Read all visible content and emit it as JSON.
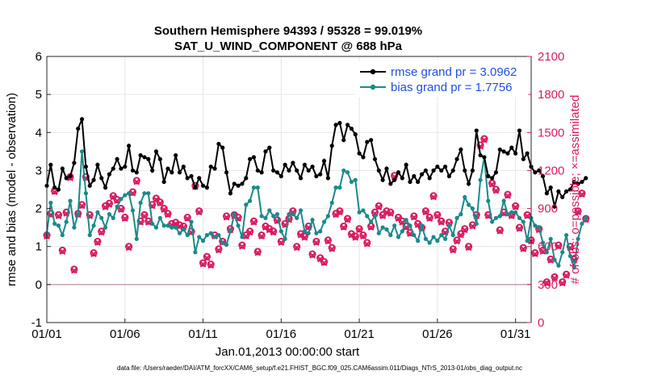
{
  "chart_data": {
    "type": "line",
    "title_lines": [
      "Southern Hemisphere 94393 / 95328 = 99.019%",
      "SAT_U_WIND_COMPONENT @ 688 hPa"
    ],
    "xlabel": "Jan.01,2013 00:00:00 start",
    "ylabel_left": "rmse and bias (model - observation)",
    "ylabel_right": "# of obs: o=possible; ×=assimilated",
    "xlim": [
      1,
      32
    ],
    "ylim_left": [
      -1,
      6
    ],
    "ylim_right": [
      0,
      2100
    ],
    "x_ticks": [
      1,
      6,
      11,
      16,
      21,
      26,
      31
    ],
    "x_tick_labels": [
      "01/01",
      "01/06",
      "01/11",
      "01/16",
      "01/21",
      "01/26",
      "01/31"
    ],
    "y_ticks_left": [
      "-1",
      "0",
      "1",
      "2",
      "3",
      "4",
      "5",
      "6"
    ],
    "y_ticks_right": [
      "0",
      "300",
      "600",
      "900",
      "1200",
      "1500",
      "1800",
      "2100"
    ],
    "legend": [
      "rmse grand pr = 3.0962",
      "bias grand pr = 1.7756"
    ],
    "footnote": "data file: /Users/raeder/DAI/ATM_forcXX/CAM6_setup/f.e21.FHIST_BGC.f09_025.CAM6assim.011/Diags_NTrS_2013-01/obs_diag_output.nc",
    "x_start": 1,
    "x_step": 0.25,
    "series": [
      {
        "name": "rmse",
        "color": "#000000",
        "values": [
          2.6,
          3.15,
          2.55,
          2.5,
          3.05,
          2.8,
          2.85,
          3.2,
          4.1,
          4.35,
          3.1,
          2.6,
          2.75,
          3.15,
          2.8,
          2.55,
          2.9,
          3.05,
          3.3,
          3.05,
          3.1,
          3.65,
          3.0,
          2.95,
          3.4,
          3.35,
          3.3,
          3.0,
          3.5,
          3.3,
          2.7,
          3.05,
          2.95,
          3.4,
          2.95,
          3.1,
          2.8,
          2.85,
          2.55,
          2.8,
          2.6,
          2.55,
          3.1,
          3.05,
          3.7,
          3.6,
          2.95,
          2.4,
          2.65,
          2.6,
          2.65,
          2.8,
          3.3,
          3.35,
          3.0,
          2.95,
          3.5,
          3.6,
          3.0,
          2.95,
          2.85,
          3.15,
          3.0,
          3.2,
          3.0,
          2.8,
          3.15,
          3.0,
          3.1,
          2.85,
          2.9,
          3.25,
          2.8,
          3.65,
          4.2,
          4.25,
          3.8,
          4.2,
          4.1,
          3.95,
          3.45,
          3.35,
          3.75,
          3.8,
          3.3,
          3.0,
          2.75,
          3.05,
          2.65,
          2.75,
          2.95,
          2.8,
          3.15,
          2.7,
          2.85,
          2.7,
          2.9,
          3.0,
          2.8,
          3.0,
          3.1,
          3.0,
          3.1,
          2.85,
          3.0,
          3.3,
          3.55,
          3.0,
          2.65,
          3.0,
          4.05,
          3.4,
          3.35,
          2.85,
          2.8,
          2.95,
          3.55,
          3.5,
          3.45,
          3.6,
          3.45,
          4.05,
          3.3,
          3.45,
          3.1,
          2.95,
          3.0,
          2.85,
          2.4,
          2.55,
          2.05,
          2.45,
          2.3,
          2.45,
          2.5,
          2.7,
          2.65,
          2.7,
          2.8
        ]
      },
      {
        "name": "bias",
        "color": "#1a8a8a",
        "values": [
          1.35,
          2.15,
          1.6,
          1.55,
          1.3,
          1.65,
          2.2,
          1.5,
          1.85,
          3.5,
          2.4,
          1.3,
          1.55,
          1.9,
          1.75,
          1.5,
          1.85,
          1.75,
          2.05,
          2.25,
          2.35,
          2.4,
          1.95,
          1.2,
          2.15,
          2.4,
          2.4,
          1.6,
          1.5,
          1.75,
          1.55,
          1.55,
          1.5,
          1.5,
          1.35,
          1.45,
          1.3,
          1.65,
          0.85,
          1.25,
          1.15,
          1.3,
          1.35,
          1.25,
          1.3,
          1.1,
          1.05,
          1.4,
          1.85,
          1.55,
          1.25,
          2.1,
          2.2,
          2.55,
          2.55,
          1.8,
          1.75,
          1.95,
          1.8,
          1.85,
          1.4,
          1.2,
          1.85,
          1.85,
          1.75,
          1.95,
          1.4,
          1.35,
          1.7,
          1.35,
          1.4,
          1.65,
          1.8,
          2.15,
          2.55,
          2.55,
          3.0,
          2.95,
          2.7,
          2.75,
          1.9,
          1.95,
          1.8,
          1.65,
          1.8,
          1.35,
          1.5,
          1.45,
          1.3,
          1.55,
          1.25,
          1.4,
          1.7,
          1.55,
          1.3,
          1.15,
          1.55,
          1.2,
          1.1,
          1.25,
          1.15,
          1.3,
          1.2,
          1.55,
          1.3,
          1.75,
          1.85,
          2.3,
          2.1,
          2.0,
          1.6,
          2.75,
          3.35,
          2.2,
          1.65,
          1.75,
          1.8,
          2.2,
          1.85,
          1.9,
          1.9,
          1.75,
          1.65,
          1.15,
          1.75,
          1.55,
          1.5,
          1.1,
          0.85,
          1.2,
          0.65,
          0.5,
          0.85,
          1.3,
          0.75,
          0.45,
          1.2,
          1.6,
          1.75
        ]
      },
      {
        "name": "obs possible",
        "color": "#d81b60",
        "axis": "right",
        "values": [
          690,
          860,
          1040,
          850,
          570,
          870,
          1150,
          420,
          860,
          930,
          1150,
          850,
          550,
          640,
          720,
          920,
          940,
          1000,
          970,
          900,
          830,
          600,
          1030,
          1120,
          800,
          850,
          800,
          930,
          980,
          950,
          900,
          860,
          780,
          790,
          770,
          760,
          830,
          720,
          1080,
          880,
          470,
          520,
          460,
          690,
          580,
          640,
          840,
          740,
          850,
          830,
          610,
          690,
          720,
          800,
          560,
          690,
          760,
          740,
          720,
          810,
          640,
          780,
          820,
          880,
          600,
          700,
          680,
          760,
          540,
          640,
          510,
          480,
          650,
          590,
          860,
          880,
          760,
          820,
          700,
          680,
          740,
          690,
          630,
          760,
          870,
          920,
          850,
          880,
          870,
          1160,
          830,
          800,
          760,
          710,
          840,
          780,
          750,
          880,
          830,
          1000,
          850,
          800,
          720,
          790,
          580,
          650,
          700,
          740,
          600,
          770,
          850,
          1400,
          1450,
          850,
          1100,
          1050,
          730,
          870,
          1010,
          850,
          920,
          750,
          590,
          850,
          650,
          550,
          740,
          570,
          320,
          500,
          360,
          610,
          320,
          380,
          600,
          500,
          880,
          1020,
          820
        ]
      },
      {
        "name": "obs assimilated",
        "color": "#d81b60",
        "axis": "right",
        "values": [
          680,
          850,
          1030,
          840,
          560,
          860,
          1140,
          410,
          850,
          920,
          1140,
          840,
          540,
          630,
          710,
          910,
          930,
          990,
          960,
          890,
          820,
          590,
          1020,
          1110,
          790,
          840,
          790,
          920,
          970,
          940,
          890,
          850,
          770,
          780,
          760,
          750,
          820,
          710,
          1070,
          870,
          460,
          510,
          450,
          680,
          570,
          630,
          830,
          730,
          840,
          820,
          600,
          680,
          710,
          790,
          550,
          680,
          750,
          730,
          710,
          800,
          630,
          770,
          810,
          870,
          590,
          690,
          670,
          750,
          530,
          630,
          500,
          470,
          640,
          580,
          850,
          870,
          750,
          810,
          690,
          670,
          730,
          680,
          620,
          750,
          860,
          910,
          840,
          870,
          860,
          1150,
          820,
          790,
          750,
          700,
          830,
          770,
          740,
          870,
          820,
          990,
          840,
          790,
          710,
          780,
          570,
          640,
          690,
          730,
          590,
          760,
          840,
          1390,
          1440,
          840,
          1090,
          1040,
          720,
          860,
          1000,
          840,
          910,
          740,
          580,
          840,
          640,
          540,
          730,
          560,
          310,
          490,
          350,
          600,
          310,
          370,
          590,
          490,
          870,
          1010,
          810
        ]
      }
    ]
  }
}
